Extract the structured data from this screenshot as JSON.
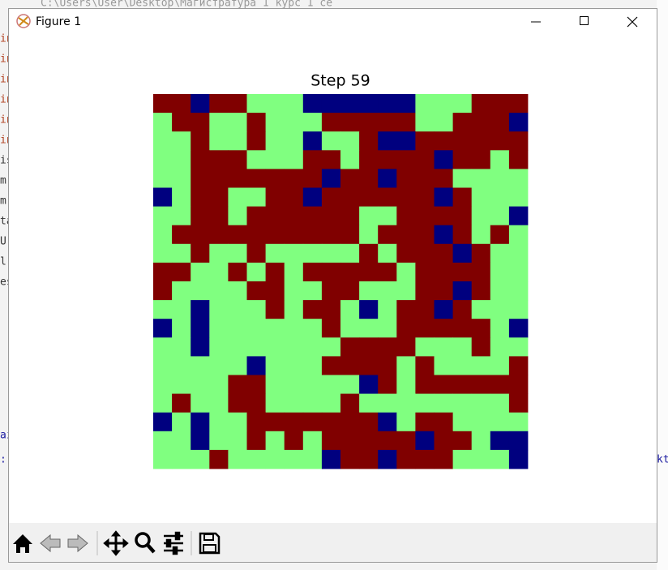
{
  "background": {
    "top_text": "C:\\Users\\User\\Desktop\\Магистратура 1 курс 1 се",
    "left_lines": [
      "in",
      "in",
      "in",
      "in",
      "in",
      "in",
      "is",
      "m",
      "m",
      "ta",
      "U",
      "l",
      "es"
    ],
    "left_lower": [
      "ai",
      ":"
    ],
    "right_text": "kt"
  },
  "window": {
    "title": "Figure 1"
  },
  "figure": {
    "title": "Step 59",
    "colors": [
      "#00007f",
      "#80ff80",
      "#800000"
    ],
    "grid": [
      [
        2,
        2,
        0,
        2,
        2,
        1,
        1,
        1,
        0,
        0,
        0,
        0,
        0,
        0,
        1,
        1,
        1,
        2,
        2,
        2
      ],
      [
        1,
        2,
        2,
        1,
        1,
        2,
        1,
        1,
        1,
        2,
        2,
        2,
        2,
        2,
        1,
        1,
        2,
        2,
        2,
        0
      ],
      [
        1,
        1,
        2,
        1,
        1,
        2,
        1,
        1,
        0,
        1,
        1,
        2,
        0,
        0,
        2,
        2,
        2,
        2,
        2,
        2
      ],
      [
        1,
        1,
        2,
        2,
        2,
        1,
        1,
        1,
        2,
        2,
        1,
        2,
        2,
        2,
        2,
        0,
        2,
        2,
        1,
        2
      ],
      [
        1,
        1,
        2,
        2,
        2,
        2,
        2,
        2,
        2,
        0,
        2,
        2,
        0,
        2,
        2,
        2,
        1,
        1,
        1,
        1
      ],
      [
        0,
        1,
        2,
        2,
        1,
        1,
        2,
        2,
        0,
        2,
        2,
        2,
        2,
        2,
        2,
        0,
        2,
        1,
        1,
        1
      ],
      [
        1,
        1,
        2,
        2,
        1,
        2,
        2,
        2,
        2,
        2,
        2,
        1,
        1,
        2,
        2,
        2,
        2,
        1,
        1,
        0
      ],
      [
        1,
        2,
        2,
        2,
        2,
        2,
        2,
        2,
        2,
        2,
        2,
        1,
        2,
        2,
        2,
        0,
        2,
        1,
        2,
        1
      ],
      [
        1,
        1,
        2,
        1,
        1,
        2,
        1,
        1,
        1,
        1,
        1,
        2,
        1,
        2,
        2,
        2,
        0,
        2,
        1,
        1
      ],
      [
        2,
        2,
        1,
        1,
        2,
        1,
        2,
        1,
        2,
        2,
        2,
        2,
        2,
        1,
        2,
        2,
        2,
        2,
        1,
        1
      ],
      [
        2,
        1,
        1,
        1,
        1,
        2,
        2,
        1,
        1,
        2,
        2,
        1,
        1,
        1,
        2,
        2,
        0,
        2,
        1,
        1
      ],
      [
        1,
        1,
        0,
        1,
        1,
        1,
        2,
        1,
        2,
        2,
        1,
        0,
        1,
        2,
        2,
        0,
        2,
        1,
        1,
        1
      ],
      [
        0,
        1,
        0,
        1,
        1,
        1,
        1,
        1,
        1,
        2,
        1,
        1,
        1,
        2,
        2,
        2,
        2,
        2,
        1,
        0
      ],
      [
        1,
        1,
        0,
        1,
        1,
        1,
        1,
        1,
        1,
        1,
        2,
        2,
        2,
        2,
        1,
        1,
        1,
        2,
        1,
        1
      ],
      [
        1,
        1,
        1,
        1,
        1,
        0,
        1,
        1,
        1,
        2,
        2,
        2,
        2,
        1,
        2,
        1,
        1,
        1,
        1,
        2
      ],
      [
        1,
        1,
        1,
        1,
        2,
        2,
        1,
        1,
        1,
        1,
        1,
        0,
        2,
        1,
        2,
        2,
        2,
        2,
        2,
        2
      ],
      [
        1,
        2,
        1,
        1,
        2,
        2,
        1,
        1,
        1,
        1,
        2,
        1,
        1,
        1,
        1,
        1,
        1,
        1,
        1,
        2
      ],
      [
        0,
        1,
        0,
        1,
        1,
        2,
        2,
        2,
        2,
        2,
        2,
        2,
        0,
        1,
        2,
        2,
        1,
        1,
        1,
        1
      ],
      [
        1,
        1,
        0,
        1,
        1,
        2,
        1,
        2,
        1,
        2,
        2,
        2,
        2,
        2,
        0,
        2,
        2,
        1,
        0,
        0
      ],
      [
        1,
        1,
        1,
        2,
        1,
        1,
        1,
        1,
        1,
        0,
        2,
        2,
        0,
        2,
        2,
        2,
        1,
        1,
        1,
        0
      ]
    ]
  }
}
